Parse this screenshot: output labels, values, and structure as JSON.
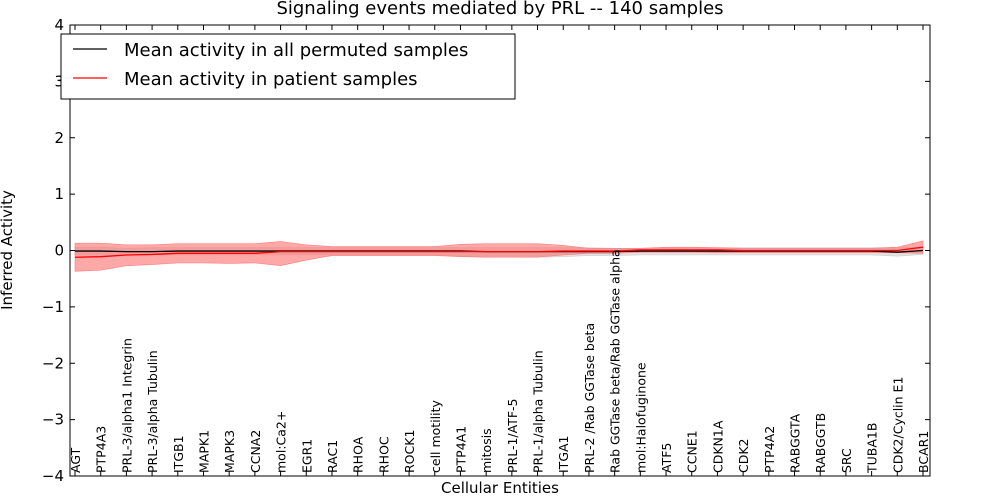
{
  "chart_data": {
    "type": "line",
    "title": "Signaling events mediated by PRL -- 140 samples",
    "xlabel": "Cellular Entities",
    "ylabel": "Inferred Activity",
    "ylim": [
      -4,
      4
    ],
    "yticks": [
      -4,
      -3,
      -2,
      -1,
      0,
      1,
      2,
      3,
      4
    ],
    "ytick_labels": [
      "−4",
      "−3",
      "−2",
      "−1",
      "0",
      "1",
      "2",
      "3",
      "4"
    ],
    "legend_position": "top-left",
    "categories": [
      "AGT",
      "PTP4A3",
      "PRL-3/alpha1 Integrin",
      "PRL-3/alpha Tubulin",
      "ITGB1",
      "MAPK1",
      "MAPK3",
      "CCNA2",
      "mol:Ca2+",
      "EGR1",
      "RAC1",
      "RHOA",
      "RHOC",
      "ROCK1",
      "cell motility",
      "PTP4A1",
      "mitosis",
      "PRL-1/ATF-5",
      "PRL-1/alpha Tubulin",
      "ITGA1",
      "PRL-2 /Rab GGTase beta",
      "Rab GGTase beta/Rab GGTase alpha",
      "mol:Halofuginone",
      "ATF5",
      "CCNE1",
      "CDKN1A",
      "CDK2",
      "PTP4A2",
      "RABGGTA",
      "RABGGTB",
      "SRC",
      "TUBA1B",
      "CDK2/Cyclin E1",
      "BCAR1"
    ],
    "series": [
      {
        "name": "Mean activity in all permuted samples",
        "color": "#000000",
        "band_color": "#c8c8c8",
        "values": [
          -0.01,
          -0.01,
          -0.02,
          -0.02,
          -0.01,
          -0.01,
          -0.01,
          -0.01,
          -0.01,
          -0.01,
          -0.01,
          -0.01,
          -0.01,
          -0.01,
          -0.01,
          -0.01,
          -0.02,
          -0.02,
          -0.02,
          -0.02,
          -0.02,
          -0.02,
          -0.01,
          -0.01,
          -0.01,
          -0.01,
          -0.01,
          -0.01,
          -0.01,
          -0.01,
          -0.01,
          -0.01,
          -0.03,
          0.0
        ],
        "upper": [
          0.06,
          0.06,
          0.04,
          0.05,
          0.05,
          0.05,
          0.05,
          0.05,
          0.05,
          0.05,
          0.05,
          0.05,
          0.05,
          0.05,
          0.05,
          0.05,
          0.05,
          0.05,
          0.05,
          0.05,
          0.05,
          0.04,
          0.04,
          0.05,
          0.05,
          0.05,
          0.05,
          0.05,
          0.05,
          0.05,
          0.05,
          0.05,
          0.05,
          0.06
        ],
        "lower": [
          -0.08,
          -0.08,
          -0.08,
          -0.08,
          -0.08,
          -0.08,
          -0.08,
          -0.08,
          -0.08,
          -0.08,
          -0.08,
          -0.08,
          -0.08,
          -0.08,
          -0.08,
          -0.1,
          -0.12,
          -0.12,
          -0.12,
          -0.11,
          -0.09,
          -0.09,
          -0.08,
          -0.08,
          -0.08,
          -0.08,
          -0.08,
          -0.08,
          -0.08,
          -0.08,
          -0.08,
          -0.08,
          -0.1,
          -0.07
        ]
      },
      {
        "name": "Mean activity in patient samples",
        "color": "#ff0000",
        "band_color": "#ff6e6e",
        "values": [
          -0.12,
          -0.11,
          -0.08,
          -0.07,
          -0.05,
          -0.05,
          -0.05,
          -0.05,
          -0.02,
          -0.02,
          -0.02,
          -0.02,
          -0.02,
          -0.02,
          -0.02,
          -0.02,
          -0.02,
          -0.02,
          -0.02,
          -0.01,
          -0.01,
          -0.01,
          0.01,
          0.01,
          0.01,
          0.01,
          0.0,
          0.0,
          0.0,
          0.0,
          0.0,
          0.0,
          0.0,
          0.06
        ],
        "upper": [
          0.13,
          0.13,
          0.1,
          0.1,
          0.12,
          0.12,
          0.12,
          0.12,
          0.16,
          0.1,
          0.07,
          0.07,
          0.07,
          0.07,
          0.07,
          0.11,
          0.12,
          0.12,
          0.12,
          0.09,
          0.04,
          0.04,
          0.04,
          0.06,
          0.06,
          0.05,
          0.04,
          0.04,
          0.04,
          0.04,
          0.04,
          0.04,
          0.06,
          0.17
        ],
        "lower": [
          -0.37,
          -0.35,
          -0.27,
          -0.25,
          -0.22,
          -0.22,
          -0.23,
          -0.22,
          -0.27,
          -0.17,
          -0.09,
          -0.09,
          -0.09,
          -0.09,
          -0.09,
          -0.11,
          -0.12,
          -0.12,
          -0.12,
          -0.08,
          -0.05,
          -0.05,
          -0.03,
          -0.03,
          -0.03,
          -0.04,
          -0.04,
          -0.04,
          -0.04,
          -0.04,
          -0.04,
          -0.04,
          -0.04,
          -0.05
        ]
      }
    ]
  }
}
